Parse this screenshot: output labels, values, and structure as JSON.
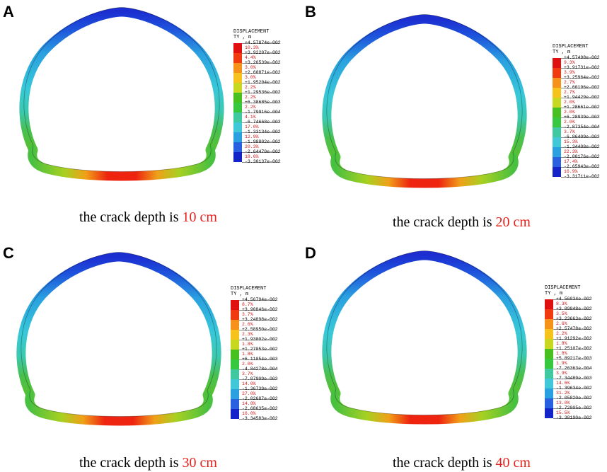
{
  "panels": [
    {
      "letter": "A",
      "caption_prefix": "the crack depth is ",
      "caption_value": "10 cm",
      "legend": {
        "title": "DISPLACEMENT",
        "subtitle": "TY , m",
        "values": [
          "+4.57874e-002",
          "+3.92207e-002",
          "+3.26539e-002",
          "+2.60871e-002",
          "+1.95204e-002",
          "+1.29536e-002",
          "+6.38685e-003",
          "-1.79916e-004",
          "-6.74668e-003",
          "-1.33134e-002",
          "-1.98802e-002",
          "-2.64470e-002",
          "-3.30137e-002"
        ],
        "percents": [
          "10.3%",
          "4.4%",
          "3.0%",
          "3.0%",
          "2.2%",
          "2.2%",
          "2.2%",
          "4.1%",
          "17.0%",
          "12.9%",
          "20.3%",
          "18.6%"
        ]
      }
    },
    {
      "letter": "B",
      "caption_prefix": "the crack depth is ",
      "caption_value": "20 cm",
      "legend": {
        "title": "DISPLACEMENT",
        "subtitle": "TY , m",
        "values": [
          "+4.57498e-002",
          "+3.91731e-002",
          "+3.25964e-002",
          "+2.60196e-002",
          "+1.94429e-002",
          "+1.28661e-002",
          "+6.28939e-003",
          "-2.87354e-004",
          "-6.86409e-003",
          "-1.34408e-002",
          "-2.00176e-002",
          "-2.65943e-002",
          "-3.31711e-002"
        ],
        "percents": [
          "9.3%",
          "3.9%",
          "2.7%",
          "2.7%",
          "2.0%",
          "2.0%",
          "2.0%",
          "3.7%",
          "15.3%",
          "22.3%",
          "17.4%",
          "16.9%"
        ]
      }
    },
    {
      "letter": "C",
      "caption_prefix": "the crack depth is ",
      "caption_value": "30 cm",
      "legend": {
        "title": "DISPLACEMENT",
        "subtitle": "TY , m",
        "values": [
          "+4.56794e-002",
          "+3.90846e-002",
          "+3.24898e-002",
          "+2.58950e-002",
          "+1.93002e-002",
          "+1.27053e-002",
          "+6.11054e-003",
          "-4.84278e-004",
          "-7.07909e-003",
          "-1.36739e-002",
          "-2.02687e-002",
          "-2.68635e-002",
          "-3.34583e-002"
        ],
        "percents": [
          "8.7%",
          "3.7%",
          "2.6%",
          "2.3%",
          "1.8%",
          "1.8%",
          "2.0%",
          "3.7%",
          "14.0%",
          "27.0%",
          "14.8%",
          "16.0%"
        ]
      }
    },
    {
      "letter": "D",
      "caption_prefix": "the crack depth is ",
      "caption_value": "40 cm",
      "legend": {
        "title": "DISPLACEMENT",
        "subtitle": "TY , m",
        "values": [
          "+4.56034e-002",
          "+3.89848e-002",
          "+3.23663e-002",
          "+2.57478e-002",
          "+1.91292e-002",
          "+1.25107e-002",
          "+5.89217e-003",
          "-7.26363e-004",
          "-7.34489e-003",
          "-1.39634e-002",
          "-2.05820e-002",
          "-2.72005e-002",
          "-3.38190e-002"
        ],
        "percents": [
          "8.3%",
          "3.5%",
          "2.6%",
          "2.2%",
          "1.8%",
          "1.8%",
          "1.9%",
          "3.9%",
          "14.6%",
          "31.2%",
          "13.0%",
          "15.5%"
        ]
      }
    }
  ],
  "colors": {
    "scale": [
      "#e01010",
      "#f23a10",
      "#f6921a",
      "#f6c21c",
      "#c8d820",
      "#48c020",
      "#38c840",
      "#40c8a0",
      "#40c8d8",
      "#2aa0e0",
      "#2860e0",
      "#1424c8"
    ],
    "caption_highlight": "#e8201c"
  }
}
